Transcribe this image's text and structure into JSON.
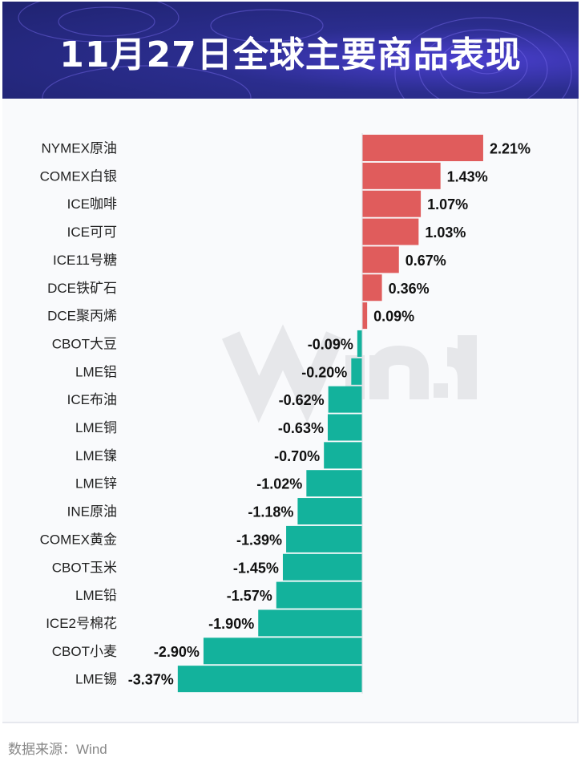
{
  "header": {
    "title": "11月27日全球主要商品表现"
  },
  "chart_data": {
    "type": "bar",
    "orientation": "horizontal",
    "title": "11月27日全球主要商品表现",
    "categories": [
      "NYMEX原油",
      "COMEX白银",
      "ICE咖啡",
      "ICE可可",
      "ICE11号糖",
      "DCE铁矿石",
      "DCE聚丙烯",
      "CBOT大豆",
      "LME铝",
      "ICE布油",
      "LME铜",
      "LME镍",
      "LME锌",
      "INE原油",
      "COMEX黄金",
      "CBOT玉米",
      "LME铅",
      "ICE2号棉花",
      "CBOT小麦",
      "LME锡"
    ],
    "values": [
      2.21,
      1.43,
      1.07,
      1.03,
      0.67,
      0.36,
      0.09,
      -0.09,
      -0.2,
      -0.62,
      -0.63,
      -0.7,
      -1.02,
      -1.18,
      -1.39,
      -1.45,
      -1.57,
      -1.9,
      -2.9,
      -3.37
    ],
    "labels": [
      "2.21%",
      "1.43%",
      "1.07%",
      "1.03%",
      "0.67%",
      "0.36%",
      "0.09%",
      "-0.09%",
      "-0.20%",
      "-0.62%",
      "-0.63%",
      "-0.70%",
      "-1.02%",
      "-1.18%",
      "-1.39%",
      "-1.45%",
      "-1.57%",
      "-1.90%",
      "-2.90%",
      "-3.37%"
    ],
    "unit": "%",
    "colors": {
      "positive": "#e05c5c",
      "negative": "#13b29c"
    },
    "watermark": "Wind"
  },
  "footer": {
    "source": "数据来源：Wind"
  }
}
